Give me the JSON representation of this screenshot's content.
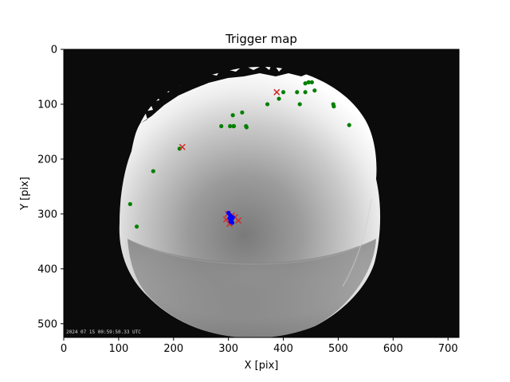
{
  "chart_data": {
    "type": "scatter",
    "title": "Trigger map",
    "xlabel": "X [pix]",
    "ylabel": "Y [pix]",
    "xlim": [
      0,
      720
    ],
    "ylim": [
      525,
      0
    ],
    "xticks": [
      0,
      100,
      200,
      300,
      400,
      500,
      600,
      700
    ],
    "yticks": [
      0,
      100,
      200,
      300,
      400,
      500
    ],
    "background_image": "all-sky camera frame (fisheye)",
    "image_timestamp": "2024 07 15 00:59:50.33 UTC",
    "series": [
      {
        "marker": "circle",
        "color": "#008000",
        "points": [
          [
            446,
            60
          ],
          [
            452,
            60
          ],
          [
            440,
            62
          ],
          [
            457,
            75
          ],
          [
            400,
            78
          ],
          [
            425,
            78
          ],
          [
            440,
            78
          ],
          [
            392,
            90
          ],
          [
            430,
            100
          ],
          [
            371,
            100
          ],
          [
            491,
            100
          ],
          [
            492,
            104
          ],
          [
            325,
            115
          ],
          [
            308,
            120
          ],
          [
            332,
            140
          ],
          [
            333,
            142
          ],
          [
            309,
            140
          ],
          [
            310,
            140
          ],
          [
            303,
            140
          ],
          [
            287,
            140
          ],
          [
            520,
            138
          ],
          [
            211,
            181
          ],
          [
            163,
            222
          ],
          [
            121,
            282
          ],
          [
            133,
            323
          ]
        ]
      },
      {
        "marker": "x",
        "color": "#d62728",
        "points": [
          [
            388,
            78
          ],
          [
            216,
            178
          ],
          [
            299,
            300
          ],
          [
            306,
            303
          ],
          [
            296,
            310
          ],
          [
            312,
            306
          ],
          [
            302,
            318
          ],
          [
            318,
            312
          ]
        ]
      },
      {
        "marker": "circle",
        "color": "#0000ff",
        "points": [
          [
            300,
            298
          ],
          [
            303,
            302
          ],
          [
            305,
            305
          ],
          [
            302,
            308
          ],
          [
            306,
            310
          ],
          [
            308,
            306
          ],
          [
            304,
            314
          ],
          [
            307,
            316
          ]
        ]
      }
    ]
  }
}
